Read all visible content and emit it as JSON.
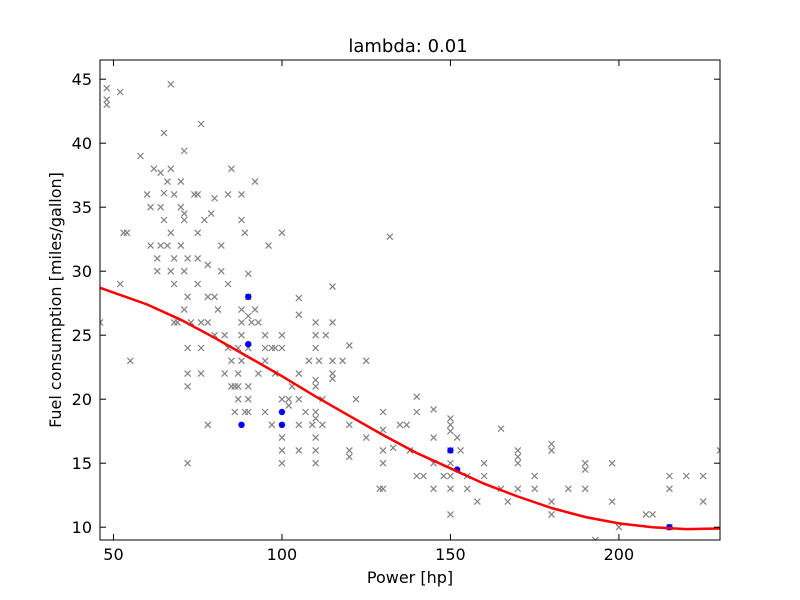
{
  "chart_data": {
    "type": "scatter",
    "title": "lambda: 0.01",
    "xlabel": "Power [hp]",
    "ylabel": "Fuel consumption [miles/gallon]",
    "xlim": [
      46,
      230
    ],
    "ylim": [
      9,
      46.5
    ],
    "xticks": [
      50,
      100,
      150,
      200
    ],
    "yticks": [
      10,
      15,
      20,
      25,
      30,
      35,
      40,
      45
    ],
    "grid": false,
    "series": [
      {
        "role": "observations",
        "marker": "x",
        "color": "#808080",
        "points": [
          [
            46,
            26
          ],
          [
            48,
            43
          ],
          [
            48,
            43.4
          ],
          [
            48,
            44.3
          ],
          [
            52,
            44
          ],
          [
            52,
            29
          ],
          [
            53,
            33
          ],
          [
            54,
            33
          ],
          [
            55,
            23
          ],
          [
            58,
            39
          ],
          [
            60,
            36
          ],
          [
            61,
            32
          ],
          [
            61,
            35
          ],
          [
            62,
            38
          ],
          [
            63,
            30
          ],
          [
            63,
            31
          ],
          [
            64,
            32
          ],
          [
            64,
            35
          ],
          [
            64,
            37.7
          ],
          [
            65,
            36.1
          ],
          [
            65,
            34
          ],
          [
            65,
            40.8
          ],
          [
            66,
            37
          ],
          [
            66,
            32
          ],
          [
            67,
            38
          ],
          [
            67,
            33
          ],
          [
            67,
            30
          ],
          [
            67,
            44.6
          ],
          [
            68,
            26
          ],
          [
            68,
            29
          ],
          [
            68,
            31
          ],
          [
            68,
            36
          ],
          [
            69,
            26
          ],
          [
            70,
            32
          ],
          [
            70,
            35
          ],
          [
            70,
            37
          ],
          [
            71,
            27
          ],
          [
            71,
            30
          ],
          [
            71,
            34
          ],
          [
            71,
            34.5
          ],
          [
            71,
            39.4
          ],
          [
            72,
            22
          ],
          [
            72,
            24
          ],
          [
            72,
            21
          ],
          [
            72,
            15
          ],
          [
            72,
            28
          ],
          [
            72,
            31
          ],
          [
            73,
            26
          ],
          [
            74,
            36
          ],
          [
            75,
            31
          ],
          [
            75,
            29
          ],
          [
            75,
            33
          ],
          [
            75,
            36
          ],
          [
            76,
            24
          ],
          [
            76,
            22
          ],
          [
            76,
            26
          ],
          [
            76,
            41.5
          ],
          [
            77,
            34
          ],
          [
            78,
            18
          ],
          [
            78,
            26
          ],
          [
            78,
            28
          ],
          [
            78,
            30.5
          ],
          [
            79,
            34.5
          ],
          [
            80,
            35.7
          ],
          [
            80,
            25
          ],
          [
            80,
            28
          ],
          [
            81,
            27
          ],
          [
            82,
            30
          ],
          [
            82,
            32
          ],
          [
            83,
            25
          ],
          [
            83,
            22
          ],
          [
            84,
            24
          ],
          [
            84,
            29
          ],
          [
            84,
            36
          ],
          [
            85,
            38
          ],
          [
            85,
            23
          ],
          [
            85,
            21
          ],
          [
            86,
            21
          ],
          [
            86,
            19
          ],
          [
            87,
            24
          ],
          [
            87,
            22
          ],
          [
            87,
            20
          ],
          [
            87,
            21
          ],
          [
            88,
            26
          ],
          [
            88,
            23
          ],
          [
            88,
            27
          ],
          [
            88,
            25
          ],
          [
            88,
            36
          ],
          [
            88,
            34
          ],
          [
            89,
            33
          ],
          [
            89,
            19
          ],
          [
            90,
            20
          ],
          [
            90,
            28
          ],
          [
            90,
            26.5
          ],
          [
            90,
            29.8
          ],
          [
            90,
            24
          ],
          [
            90,
            21
          ],
          [
            90,
            19
          ],
          [
            91,
            26
          ],
          [
            92,
            27
          ],
          [
            92,
            37
          ],
          [
            93,
            26
          ],
          [
            93,
            22
          ],
          [
            95,
            19
          ],
          [
            95,
            25
          ],
          [
            95,
            23
          ],
          [
            95,
            24
          ],
          [
            96,
            32
          ],
          [
            97,
            24
          ],
          [
            97,
            18
          ],
          [
            98,
            22
          ],
          [
            98,
            24
          ],
          [
            100,
            33
          ],
          [
            100,
            25
          ],
          [
            100,
            20
          ],
          [
            100,
            16
          ],
          [
            100,
            15
          ],
          [
            100,
            17
          ],
          [
            100,
            24
          ],
          [
            102,
            20
          ],
          [
            102,
            19.5
          ],
          [
            103,
            21
          ],
          [
            105,
            18
          ],
          [
            105,
            22
          ],
          [
            105,
            27.9
          ],
          [
            105,
            20
          ],
          [
            105,
            26.6
          ],
          [
            105,
            16
          ],
          [
            107,
            19
          ],
          [
            108,
            23
          ],
          [
            109,
            18
          ],
          [
            110,
            19
          ],
          [
            110,
            16
          ],
          [
            110,
            15
          ],
          [
            110,
            17
          ],
          [
            110,
            18.5
          ],
          [
            110,
            21
          ],
          [
            110,
            24
          ],
          [
            110,
            25
          ],
          [
            110,
            26
          ],
          [
            110,
            21.5
          ],
          [
            111,
            23
          ],
          [
            112,
            20
          ],
          [
            112,
            18
          ],
          [
            113,
            25
          ],
          [
            115,
            22
          ],
          [
            115,
            21.6
          ],
          [
            115,
            23
          ],
          [
            115,
            28.8
          ],
          [
            115,
            26
          ],
          [
            118,
            23
          ],
          [
            120,
            16
          ],
          [
            120,
            15.5
          ],
          [
            120,
            18
          ],
          [
            120,
            24.2
          ],
          [
            122,
            20
          ],
          [
            125,
            17
          ],
          [
            125,
            23
          ],
          [
            129,
            13
          ],
          [
            130,
            13
          ],
          [
            130,
            16
          ],
          [
            130,
            17.6
          ],
          [
            130,
            15
          ],
          [
            130,
            19
          ],
          [
            132,
            32.7
          ],
          [
            133,
            16.2
          ],
          [
            135,
            18
          ],
          [
            137,
            18
          ],
          [
            138,
            16
          ],
          [
            140,
            14
          ],
          [
            140,
            20.2
          ],
          [
            140,
            19
          ],
          [
            142,
            14
          ],
          [
            145,
            13
          ],
          [
            145,
            15
          ],
          [
            145,
            17
          ],
          [
            145,
            19.2
          ],
          [
            148,
            14
          ],
          [
            150,
            11
          ],
          [
            150,
            13
          ],
          [
            150,
            14
          ],
          [
            150,
            15
          ],
          [
            150,
            16
          ],
          [
            150,
            18
          ],
          [
            150,
            17.5
          ],
          [
            150,
            18.5
          ],
          [
            152,
            17
          ],
          [
            153,
            16
          ],
          [
            155,
            14
          ],
          [
            155,
            13
          ],
          [
            158,
            12
          ],
          [
            160,
            15
          ],
          [
            160,
            14
          ],
          [
            165,
            13
          ],
          [
            165,
            17.7
          ],
          [
            167,
            12
          ],
          [
            170,
            13
          ],
          [
            170,
            15
          ],
          [
            170,
            15.5
          ],
          [
            170,
            16
          ],
          [
            175,
            13
          ],
          [
            175,
            14
          ],
          [
            180,
            11
          ],
          [
            180,
            12
          ],
          [
            180,
            16
          ],
          [
            180,
            16.5
          ],
          [
            185,
            13
          ],
          [
            190,
            15
          ],
          [
            190,
            14.5
          ],
          [
            190,
            13
          ],
          [
            193,
            9
          ],
          [
            198,
            15
          ],
          [
            198,
            12
          ],
          [
            200,
            10
          ],
          [
            208,
            11
          ],
          [
            210,
            11
          ],
          [
            215,
            14
          ],
          [
            215,
            13
          ],
          [
            215,
            10
          ],
          [
            220,
            14
          ],
          [
            225,
            14
          ],
          [
            225,
            12
          ],
          [
            230,
            16
          ]
        ]
      },
      {
        "role": "selected",
        "marker": "o",
        "color": "#0000ff",
        "points": [
          [
            88,
            18
          ],
          [
            90,
            28
          ],
          [
            90,
            24.3
          ],
          [
            100,
            19
          ],
          [
            100,
            18
          ],
          [
            150,
            16
          ],
          [
            152,
            14.5
          ],
          [
            215,
            10
          ]
        ]
      },
      {
        "role": "fit",
        "line": true,
        "color": "#ff0000",
        "points": [
          [
            46,
            28.7
          ],
          [
            60,
            27.4
          ],
          [
            70,
            26.2
          ],
          [
            80,
            24.8
          ],
          [
            90,
            23.3
          ],
          [
            100,
            21.8
          ],
          [
            110,
            20.2
          ],
          [
            120,
            18.7
          ],
          [
            130,
            17.2
          ],
          [
            140,
            15.8
          ],
          [
            150,
            14.6
          ],
          [
            160,
            13.4
          ],
          [
            170,
            12.4
          ],
          [
            180,
            11.5
          ],
          [
            190,
            10.8
          ],
          [
            200,
            10.3
          ],
          [
            210,
            10
          ],
          [
            220,
            9.85
          ],
          [
            230,
            9.9
          ]
        ]
      }
    ]
  }
}
